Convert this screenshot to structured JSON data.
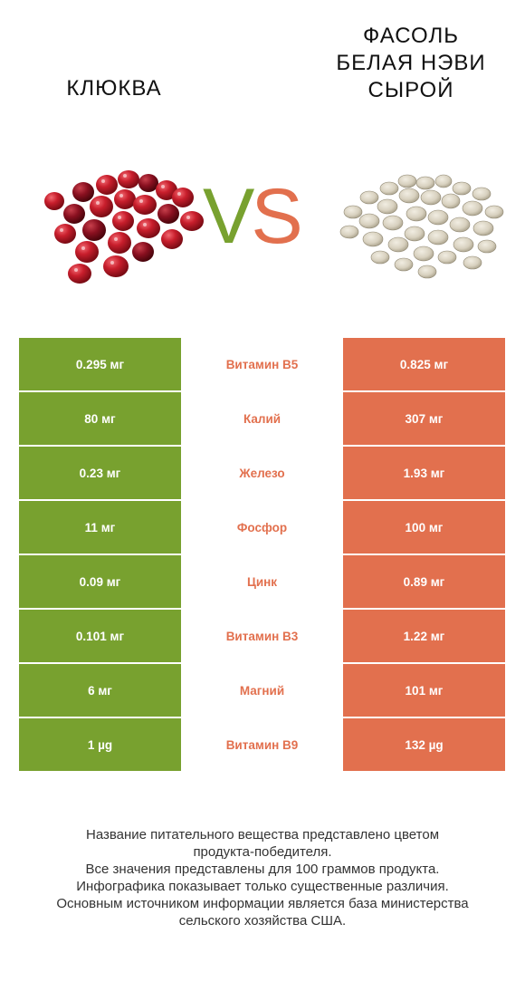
{
  "header": {
    "left_title": "КЛЮКВА",
    "right_title_lines": [
      "ФАСОЛЬ",
      "БЕЛАЯ НЭВИ",
      "СЫРОЙ"
    ],
    "vs_v": "V",
    "vs_s": "S"
  },
  "colors": {
    "left_accent": "#78a12f",
    "right_accent": "#e2704e"
  },
  "images": {
    "left": "cranberries",
    "right": "white-navy-beans"
  },
  "rows": [
    {
      "left": "0.295 мг",
      "nutrient": "Витамин B5",
      "right": "0.825 мг",
      "winner": "right"
    },
    {
      "left": "80 мг",
      "nutrient": "Калий",
      "right": "307 мг",
      "winner": "right"
    },
    {
      "left": "0.23 мг",
      "nutrient": "Железо",
      "right": "1.93 мг",
      "winner": "right"
    },
    {
      "left": "11 мг",
      "nutrient": "Фосфор",
      "right": "100 мг",
      "winner": "right"
    },
    {
      "left": "0.09 мг",
      "nutrient": "Цинк",
      "right": "0.89 мг",
      "winner": "right"
    },
    {
      "left": "0.101 мг",
      "nutrient": "Витамин B3",
      "right": "1.22 мг",
      "winner": "right"
    },
    {
      "left": "6 мг",
      "nutrient": "Магний",
      "right": "101 мг",
      "winner": "right"
    },
    {
      "left": "1 µg",
      "nutrient": "Витамин B9",
      "right": "132 µg",
      "winner": "right"
    }
  ],
  "footer": {
    "lines": [
      "Название питательного вещества представлено цветом",
      "продукта-победителя.",
      "Все значения представлены для 100 граммов продукта.",
      "Инфографика показывает только существенные различия.",
      "Основным источником информации является база министерства",
      "сельского хозяйства США."
    ]
  }
}
